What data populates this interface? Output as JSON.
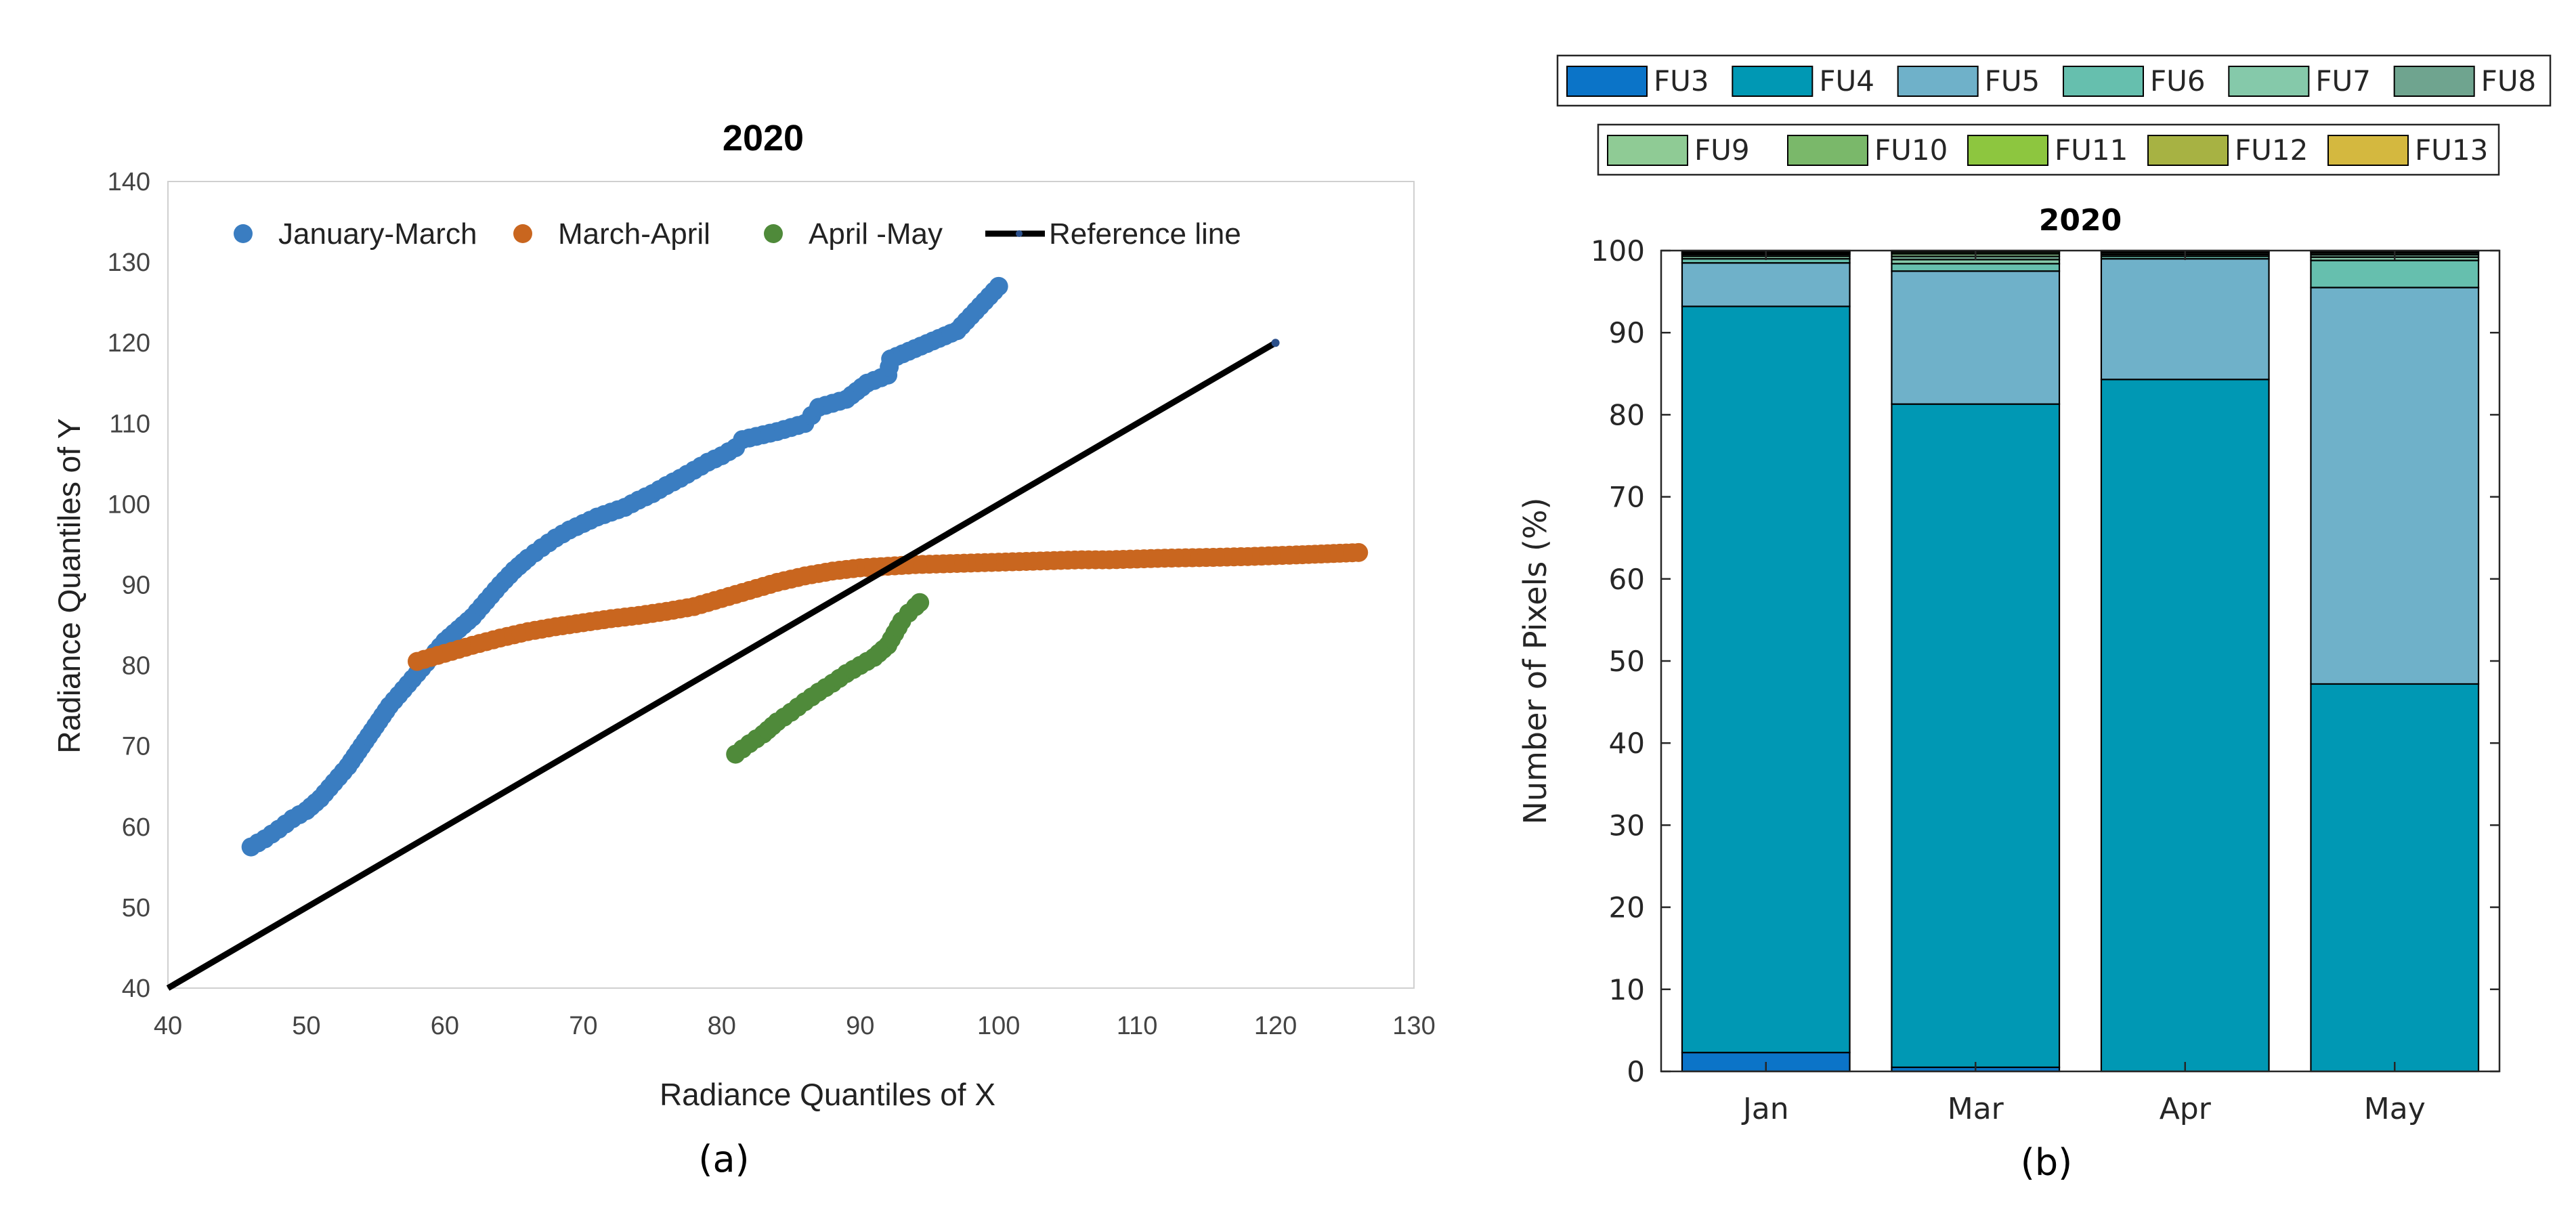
{
  "chart_data": [
    {
      "type": "scatter",
      "panel_label": "(a)",
      "title": "2020",
      "xlabel": "Radiance Quantiles of X",
      "ylabel": "Radiance Quantiles of Y",
      "xlim": [
        40,
        130
      ],
      "ylim": [
        40,
        140
      ],
      "xticks": [
        40,
        50,
        60,
        70,
        80,
        90,
        100,
        110,
        120,
        130
      ],
      "yticks": [
        40,
        50,
        60,
        70,
        80,
        90,
        100,
        110,
        120,
        130,
        140
      ],
      "legend_position": "top",
      "series": [
        {
          "name": "January-March",
          "color": "#3a7dc1",
          "kind": "points",
          "points": [
            [
              46,
              57.5
            ],
            [
              47,
              58.5
            ],
            [
              48,
              59.7
            ],
            [
              49,
              61
            ],
            [
              50,
              62
            ],
            [
              51,
              63.5
            ],
            [
              52,
              65.5
            ],
            [
              53,
              67.5
            ],
            [
              54,
              70
            ],
            [
              55,
              72.5
            ],
            [
              56,
              75
            ],
            [
              57,
              77
            ],
            [
              58,
              79
            ],
            [
              59,
              81
            ],
            [
              60,
              83
            ],
            [
              61,
              84.5
            ],
            [
              62,
              86
            ],
            [
              63,
              88
            ],
            [
              64,
              90
            ],
            [
              65,
              91.8
            ],
            [
              66,
              93.3
            ],
            [
              67,
              94.6
            ],
            [
              68,
              95.8
            ],
            [
              69,
              96.8
            ],
            [
              70,
              97.6
            ],
            [
              71,
              98.4
            ],
            [
              72,
              99
            ],
            [
              73,
              99.6
            ],
            [
              74,
              100.5
            ],
            [
              75,
              101.3
            ],
            [
              76,
              102.3
            ],
            [
              77,
              103.2
            ],
            [
              78,
              104.2
            ],
            [
              79,
              105.2
            ],
            [
              80,
              106
            ],
            [
              81,
              107
            ],
            [
              81.5,
              108
            ],
            [
              84,
              109
            ],
            [
              86,
              110
            ],
            [
              86.5,
              111
            ],
            [
              87,
              112
            ],
            [
              89,
              113
            ],
            [
              90.5,
              115
            ],
            [
              92,
              116
            ],
            [
              92.2,
              118
            ],
            [
              97,
              121.5
            ],
            [
              100,
              127
            ]
          ]
        },
        {
          "name": "March-April",
          "color": "#c9661f",
          "kind": "points",
          "points": [
            [
              58,
              80.5
            ],
            [
              60,
              81.5
            ],
            [
              62,
              82.5
            ],
            [
              64,
              83.4
            ],
            [
              66,
              84.2
            ],
            [
              68,
              84.8
            ],
            [
              70,
              85.3
            ],
            [
              72,
              85.8
            ],
            [
              74,
              86.2
            ],
            [
              76,
              86.7
            ],
            [
              78,
              87.3
            ],
            [
              80,
              88.3
            ],
            [
              82,
              89.3
            ],
            [
              84,
              90.3
            ],
            [
              86,
              91.1
            ],
            [
              88,
              91.7
            ],
            [
              90,
              92.1
            ],
            [
              92,
              92.3
            ],
            [
              94,
              92.5
            ],
            [
              96,
              92.6
            ],
            [
              98,
              92.7
            ],
            [
              100,
              92.8
            ],
            [
              102,
              92.9
            ],
            [
              104,
              93
            ],
            [
              106,
              93.1
            ],
            [
              108,
              93.1
            ],
            [
              110,
              93.2
            ],
            [
              112,
              93.3
            ],
            [
              115.5,
              93.4
            ],
            [
              118,
              93.5
            ],
            [
              121.5,
              93.7
            ],
            [
              126,
              94
            ]
          ]
        },
        {
          "name": "April -May",
          "color": "#4f8a3a",
          "kind": "points",
          "points": [
            [
              81,
              69
            ],
            [
              82,
              70.3
            ],
            [
              83,
              71.5
            ],
            [
              84,
              73
            ],
            [
              85,
              74.2
            ],
            [
              86,
              75.5
            ],
            [
              87,
              76.7
            ],
            [
              88,
              77.8
            ],
            [
              89,
              79
            ],
            [
              90,
              80
            ],
            [
              91,
              81
            ],
            [
              92,
              82.5
            ],
            [
              92.5,
              84
            ],
            [
              93,
              85.5
            ],
            [
              93.5,
              86.5
            ],
            [
              94,
              87.3
            ],
            [
              94.3,
              87.8
            ]
          ]
        },
        {
          "name": "Reference line",
          "color": "#000000",
          "kind": "line",
          "points": [
            [
              40,
              40
            ],
            [
              120,
              120
            ]
          ]
        }
      ]
    },
    {
      "type": "bar",
      "stacked": true,
      "panel_label": "(b)",
      "title": "2020",
      "xlabel": "",
      "ylabel": "Number of Pixels (%)",
      "ylim": [
        0,
        100
      ],
      "yticks": [
        0,
        10,
        20,
        30,
        40,
        50,
        60,
        70,
        80,
        90,
        100
      ],
      "categories": [
        "Jan",
        "Mar",
        "Apr",
        "May"
      ],
      "legend_position": "top",
      "series": [
        {
          "name": "FU3",
          "color": "#0b74c8",
          "values": [
            2.3,
            0.5,
            0,
            0
          ]
        },
        {
          "name": "FU4",
          "color": "#0098b4",
          "values": [
            90.9,
            80.8,
            84.3,
            47.2
          ]
        },
        {
          "name": "FU5",
          "color": "#6fb1c9",
          "values": [
            5.3,
            16.2,
            14.7,
            48.3
          ]
        },
        {
          "name": "FU6",
          "color": "#66bfae",
          "values": [
            0.5,
            0.9,
            0.3,
            3.3
          ]
        },
        {
          "name": "FU7",
          "color": "#85c9aa",
          "values": [
            0.3,
            0.5,
            0.2,
            0.4
          ]
        },
        {
          "name": "FU8",
          "color": "#6fa48f",
          "values": [
            0.2,
            0.4,
            0.2,
            0.3
          ]
        },
        {
          "name": "FU9",
          "color": "#8fcb95",
          "values": [
            0.1,
            0.3,
            0.1,
            0.2
          ]
        },
        {
          "name": "FU10",
          "color": "#7ab86a",
          "values": [
            0.1,
            0.2,
            0.1,
            0.1
          ]
        },
        {
          "name": "FU11",
          "color": "#8dc63f",
          "values": [
            0.1,
            0.1,
            0,
            0.1
          ]
        },
        {
          "name": "FU12",
          "color": "#a7b243",
          "values": [
            0.1,
            0.1,
            0,
            0.05
          ]
        },
        {
          "name": "FU13",
          "color": "#d4b83f",
          "values": [
            0.1,
            0,
            0.1,
            0.05
          ]
        }
      ]
    }
  ]
}
